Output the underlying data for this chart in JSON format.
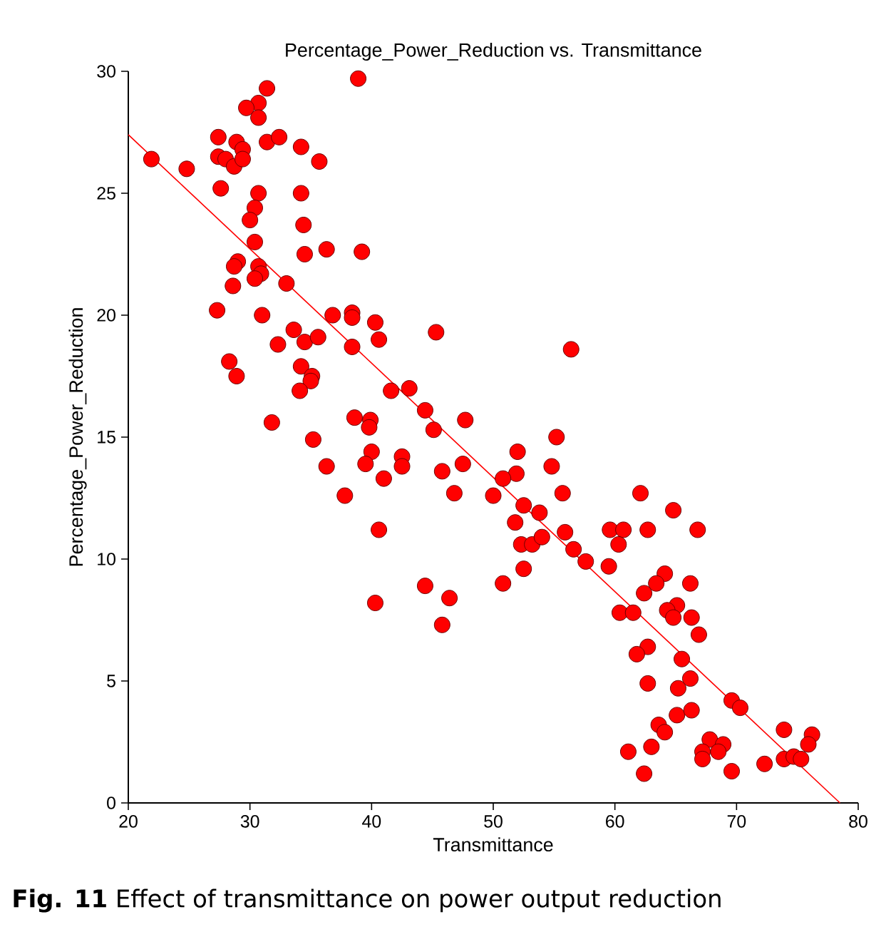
{
  "chart_data": {
    "type": "scatter",
    "title": "Percentage_Power_Reduction vs. Transmittance",
    "xlabel": "Transmittance",
    "ylabel": "Percentage_Power_Reduction",
    "annotations": [
      "**Fig. 11** Effect of transmittance on power output reduction"
    ],
    "xlim": [
      20,
      80
    ],
    "ylim": [
      0,
      30
    ],
    "xticks": [
      20,
      30,
      40,
      50,
      60,
      70,
      80
    ],
    "yticks": [
      0,
      5,
      10,
      15,
      20,
      25,
      30
    ],
    "series": [
      {
        "type": "scatter",
        "marker": "circle",
        "color": "#ff0000",
        "x": [
          38.9,
          31.4,
          30.7,
          29.7,
          30.7,
          27.4,
          28.9,
          29.4,
          31.4,
          32.4,
          34.2,
          35.7,
          21.9,
          24.8,
          27.4,
          28.0,
          28.7,
          29.4,
          27.6,
          30.7,
          30.4,
          30.0,
          34.2,
          34.4,
          30.4,
          34.5,
          36.3,
          39.2,
          29.0,
          28.7,
          30.7,
          30.9,
          30.4,
          33.0,
          28.6,
          27.3,
          31.0,
          33.6,
          32.3,
          34.5,
          35.6,
          36.8,
          38.4,
          38.4,
          40.3,
          40.6,
          38.4,
          28.3,
          28.9,
          34.2,
          35.1,
          35.0,
          34.1,
          31.8,
          35.2,
          38.6,
          39.9,
          39.8,
          41.6,
          43.1,
          44.4,
          45.1,
          45.3,
          56.4,
          47.7,
          55.2,
          52.0,
          54.8,
          51.9,
          50.8,
          45.8,
          47.5,
          42.5,
          42.5,
          41.0,
          40.0,
          39.5,
          36.3,
          37.8,
          46.8,
          50.0,
          55.7,
          62.1,
          52.5,
          53.8,
          51.8,
          55.9,
          52.3,
          53.2,
          54.0,
          56.6,
          57.6,
          59.5,
          59.6,
          60.7,
          60.3,
          62.7,
          64.8,
          66.8,
          52.5,
          44.4,
          50.8,
          46.4,
          40.6,
          40.3,
          45.8,
          64.1,
          63.4,
          66.2,
          62.4,
          65.1,
          64.3,
          64.8,
          66.3,
          60.4,
          61.5,
          66.9,
          62.7,
          61.8,
          65.5,
          62.7,
          65.2,
          66.2,
          69.6,
          70.3,
          65.1,
          66.3,
          63.6,
          64.1,
          61.1,
          63.0,
          62.4,
          67.8,
          68.9,
          67.2,
          68.5,
          67.2,
          69.6,
          72.3,
          73.9,
          76.2,
          75.9,
          73.9,
          74.7,
          75.3
        ],
        "values": [
          29.7,
          29.3,
          28.7,
          28.5,
          28.1,
          27.3,
          27.1,
          26.8,
          27.1,
          27.3,
          26.9,
          26.3,
          26.4,
          26.0,
          26.5,
          26.4,
          26.1,
          26.4,
          25.2,
          25.0,
          24.4,
          23.9,
          25.0,
          23.7,
          23.0,
          22.5,
          22.7,
          22.6,
          22.2,
          22.0,
          22.0,
          21.7,
          21.5,
          21.3,
          21.2,
          20.2,
          20.0,
          19.4,
          18.8,
          18.9,
          19.1,
          20.0,
          20.1,
          19.9,
          19.7,
          19.0,
          18.7,
          18.1,
          17.5,
          17.9,
          17.5,
          17.3,
          16.9,
          15.6,
          14.9,
          15.8,
          15.7,
          15.4,
          16.9,
          17.0,
          16.1,
          15.3,
          19.3,
          18.6,
          15.7,
          15.0,
          14.4,
          13.8,
          13.5,
          13.3,
          13.6,
          13.9,
          14.2,
          13.8,
          13.3,
          14.4,
          13.9,
          13.8,
          12.6,
          12.7,
          12.6,
          12.7,
          12.7,
          12.2,
          11.9,
          11.5,
          11.1,
          10.6,
          10.6,
          10.9,
          10.4,
          9.9,
          9.7,
          11.2,
          11.2,
          10.6,
          11.2,
          12.0,
          11.2,
          9.6,
          8.9,
          9.0,
          8.4,
          11.2,
          8.2,
          7.3,
          9.4,
          9.0,
          9.0,
          8.6,
          8.1,
          7.9,
          7.6,
          7.6,
          7.8,
          7.8,
          6.9,
          6.4,
          6.1,
          5.9,
          4.9,
          4.7,
          5.1,
          4.2,
          3.9,
          3.6,
          3.8,
          3.2,
          2.9,
          2.1,
          2.3,
          1.2,
          2.6,
          2.4,
          2.1,
          2.1,
          1.8,
          1.3,
          1.6,
          3.0,
          2.8,
          2.4,
          1.8,
          1.9,
          1.8
        ]
      },
      {
        "type": "line",
        "color": "#ff0000",
        "marker": "none",
        "x": [
          20,
          78.5
        ],
        "values": [
          27.4,
          0
        ]
      }
    ]
  }
}
